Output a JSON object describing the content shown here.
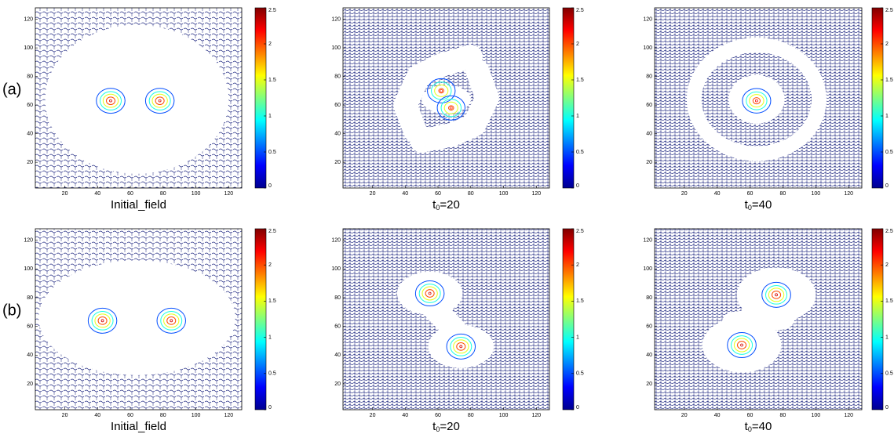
{
  "row_labels": [
    "(a)",
    "(b)"
  ],
  "chart_data": [
    {
      "type": "contour",
      "xlabel": [
        "Initial_field"
      ],
      "xlim": [
        2,
        128
      ],
      "ylim": [
        2,
        128
      ],
      "xticks": [
        20,
        40,
        60,
        80,
        100,
        120
      ],
      "yticks": [
        20,
        40,
        60,
        80,
        100,
        120
      ],
      "clim": [
        0,
        2.5
      ],
      "cticks": [
        0,
        0.5,
        1,
        1.5,
        2,
        2.5
      ],
      "levels": [
        0.5,
        1,
        1.5,
        2
      ],
      "vortices": [
        {
          "x": 48,
          "y": 63,
          "peak": 2.3
        },
        {
          "x": 78,
          "y": 63,
          "peak": 2.3
        }
      ]
    },
    {
      "type": "contour",
      "xlabel": [
        "t",
        "0",
        "=20"
      ],
      "xlim": [
        2,
        128
      ],
      "ylim": [
        2,
        128
      ],
      "xticks": [
        20,
        40,
        60,
        80,
        100,
        120
      ],
      "yticks": [
        20,
        40,
        60,
        80,
        100,
        120
      ],
      "clim": [
        0,
        2.5
      ],
      "cticks": [
        0,
        0.5,
        1,
        1.5,
        2,
        2.5
      ],
      "levels": [
        0.5,
        1,
        1.5,
        2
      ],
      "vortices": [
        {
          "x": 62,
          "y": 70,
          "peak": 2.1
        },
        {
          "x": 68,
          "y": 58,
          "peak": 2.1
        }
      ]
    },
    {
      "type": "contour",
      "xlabel": [
        "t",
        "0",
        "=40"
      ],
      "xlim": [
        2,
        128
      ],
      "ylim": [
        2,
        128
      ],
      "xticks": [
        20,
        40,
        60,
        80,
        100,
        120
      ],
      "yticks": [
        20,
        40,
        60,
        80,
        100,
        120
      ],
      "clim": [
        0,
        2.5
      ],
      "cticks": [
        0,
        0.5,
        1,
        1.5,
        2,
        2.5
      ],
      "levels": [
        0.5,
        1,
        1.5,
        2
      ],
      "vortices": [
        {
          "x": 64,
          "y": 63,
          "peak": 2.2
        }
      ]
    },
    {
      "type": "contour",
      "xlabel": [
        "Initial_field"
      ],
      "xlim": [
        2,
        128
      ],
      "ylim": [
        2,
        128
      ],
      "xticks": [
        20,
        40,
        60,
        80,
        100,
        120
      ],
      "yticks": [
        20,
        40,
        60,
        80,
        100,
        120
      ],
      "clim": [
        0,
        2.5
      ],
      "cticks": [
        0,
        0.5,
        1,
        1.5,
        2,
        2.5
      ],
      "levels": [
        0.5,
        1,
        1.5,
        2
      ],
      "vortices": [
        {
          "x": 43,
          "y": 64,
          "peak": 2.3
        },
        {
          "x": 85,
          "y": 64,
          "peak": 2.3
        }
      ]
    },
    {
      "type": "contour",
      "xlabel": [
        "t",
        "0",
        "=20"
      ],
      "xlim": [
        2,
        128
      ],
      "ylim": [
        2,
        128
      ],
      "xticks": [
        20,
        40,
        60,
        80,
        100,
        120
      ],
      "yticks": [
        20,
        40,
        60,
        80,
        100,
        120
      ],
      "clim": [
        0,
        2.5
      ],
      "cticks": [
        0,
        0.5,
        1,
        1.5,
        2,
        2.5
      ],
      "levels": [
        0.5,
        1,
        1.5,
        2
      ],
      "vortices": [
        {
          "x": 55,
          "y": 83,
          "peak": 2.3
        },
        {
          "x": 74,
          "y": 46,
          "peak": 2.3
        }
      ]
    },
    {
      "type": "contour",
      "xlabel": [
        "t",
        "0",
        "=40"
      ],
      "xlim": [
        2,
        128
      ],
      "ylim": [
        2,
        128
      ],
      "xticks": [
        20,
        40,
        60,
        80,
        100,
        120
      ],
      "yticks": [
        20,
        40,
        60,
        80,
        100,
        120
      ],
      "clim": [
        0,
        2.5
      ],
      "cticks": [
        0,
        0.5,
        1,
        1.5,
        2,
        2.5
      ],
      "levels": [
        0.5,
        1,
        1.5,
        2
      ],
      "vortices": [
        {
          "x": 76,
          "y": 82,
          "peak": 2.3
        },
        {
          "x": 55,
          "y": 47,
          "peak": 2.3
        }
      ]
    }
  ]
}
